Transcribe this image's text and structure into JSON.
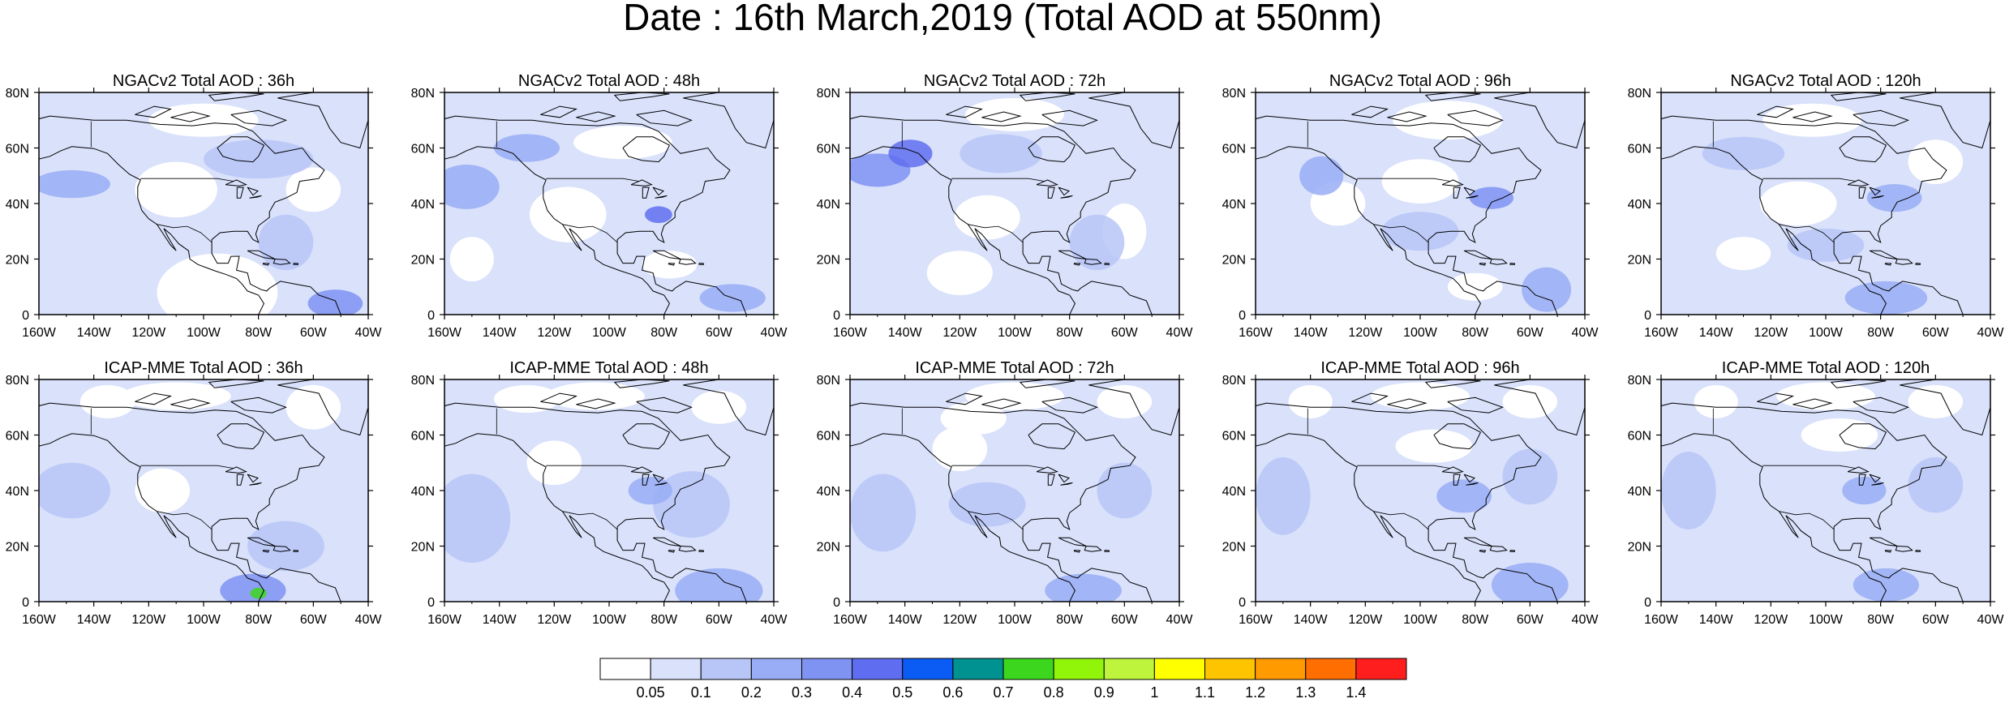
{
  "title": "Date : 16th March,2019 (Total AOD at 550nm)",
  "axes": {
    "lon_ticks": [
      "160W",
      "140W",
      "120W",
      "100W",
      "80W",
      "60W",
      "40W"
    ],
    "lat_ticks": [
      "0",
      "20N",
      "40N",
      "60N",
      "80N"
    ],
    "lon_range": [
      -160,
      -40
    ],
    "lat_range": [
      0,
      80
    ]
  },
  "panels": [
    {
      "title": "NGACv2 Total AOD : 36h",
      "model": "NGACv2",
      "lead": "36h",
      "background_level": 1
    },
    {
      "title": "NGACv2 Total AOD : 48h",
      "model": "NGACv2",
      "lead": "48h",
      "background_level": 1
    },
    {
      "title": "NGACv2 Total AOD : 72h",
      "model": "NGACv2",
      "lead": "72h",
      "background_level": 1
    },
    {
      "title": "NGACv2 Total AOD : 96h",
      "model": "NGACv2",
      "lead": "96h",
      "background_level": 1
    },
    {
      "title": "NGACv2 Total AOD : 120h",
      "model": "NGACv2",
      "lead": "120h",
      "background_level": 1
    },
    {
      "title": "ICAP-MME Total AOD : 36h",
      "model": "ICAP-MME",
      "lead": "36h",
      "background_level": 1
    },
    {
      "title": "ICAP-MME Total AOD : 48h",
      "model": "ICAP-MME",
      "lead": "48h",
      "background_level": 1
    },
    {
      "title": "ICAP-MME Total AOD : 72h",
      "model": "ICAP-MME",
      "lead": "72h",
      "background_level": 1
    },
    {
      "title": "ICAP-MME Total AOD : 96h",
      "model": "ICAP-MME",
      "lead": "96h",
      "background_level": 1
    },
    {
      "title": "ICAP-MME Total AOD : 120h",
      "model": "ICAP-MME",
      "lead": "120h",
      "background_level": 1
    }
  ],
  "colorbar": {
    "labels": [
      "0.05",
      "0.1",
      "0.2",
      "0.3",
      "0.4",
      "0.5",
      "0.6",
      "0.7",
      "0.8",
      "0.9",
      "1",
      "1.1",
      "1.2",
      "1.3",
      "1.4"
    ],
    "colors": [
      "#ffffff",
      "#d9e1fb",
      "#b7c6f7",
      "#98adf5",
      "#7f93f2",
      "#5f6ef0",
      "#0a5cf5",
      "#009191",
      "#3dd61f",
      "#91f50a",
      "#bef53c",
      "#ffff00",
      "#ffc400",
      "#ff9a00",
      "#ff6e00",
      "#ff1e1e"
    ]
  }
}
